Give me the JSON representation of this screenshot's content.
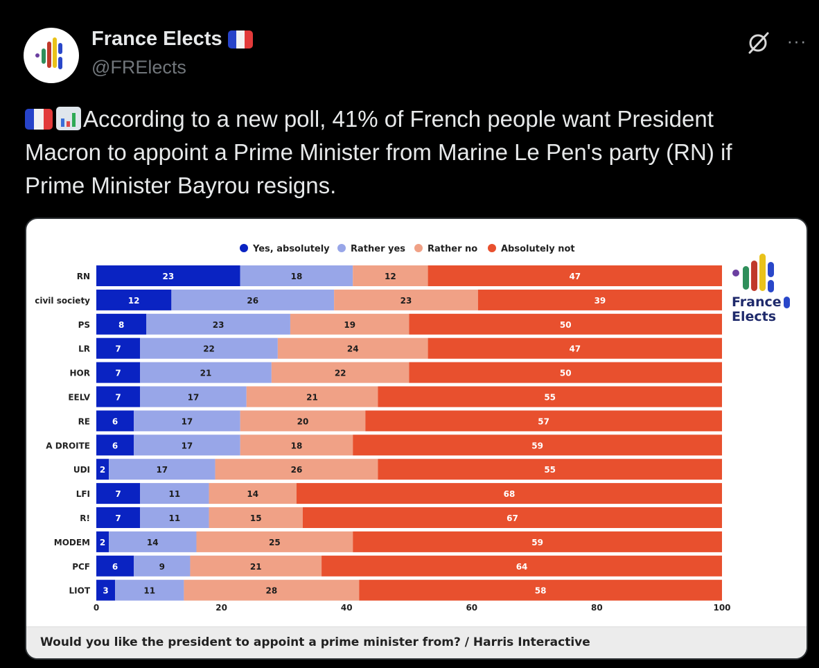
{
  "post": {
    "author_name": "France Elects",
    "author_handle": "@FRElects",
    "text": "According to a new poll, 41% of French people want President Macron to appoint a Prime Minister from Marine Le Pen's party (RN) if Prime Minister Bayrou resigns.",
    "more_label": "···"
  },
  "logo": {
    "line1": "France",
    "line2": "Elects"
  },
  "chart_data": {
    "type": "bar",
    "orientation": "horizontal-stacked-100",
    "categories": [
      "RN",
      "civil society",
      "PS",
      "LR",
      "HOR",
      "EELV",
      "RE",
      "A DROITE",
      "UDI",
      "LFI",
      "R!",
      "MODEM",
      "PCF",
      "LIOT"
    ],
    "series": [
      {
        "name": "Yes, absolutely",
        "color": "#0a23c2",
        "values": [
          23,
          12,
          8,
          7,
          7,
          7,
          6,
          6,
          2,
          7,
          7,
          2,
          6,
          3
        ]
      },
      {
        "name": "Rather yes",
        "color": "#98a6e8",
        "values": [
          18,
          26,
          23,
          22,
          21,
          17,
          17,
          17,
          17,
          11,
          11,
          14,
          9,
          11
        ]
      },
      {
        "name": "Rather no",
        "color": "#f0a186",
        "values": [
          12,
          23,
          19,
          24,
          22,
          21,
          20,
          18,
          26,
          14,
          15,
          25,
          21,
          28
        ]
      },
      {
        "name": "Absolutely not",
        "color": "#e8502e",
        "values": [
          47,
          39,
          50,
          47,
          50,
          55,
          57,
          59,
          55,
          68,
          67,
          59,
          64,
          58
        ]
      }
    ],
    "xlim": [
      0,
      100
    ],
    "xticks": [
      0,
      20,
      40,
      60,
      80,
      100
    ],
    "legend_position": "top-center",
    "caption": "Would you like the president to appoint a prime minister from? / Harris Interactive"
  }
}
